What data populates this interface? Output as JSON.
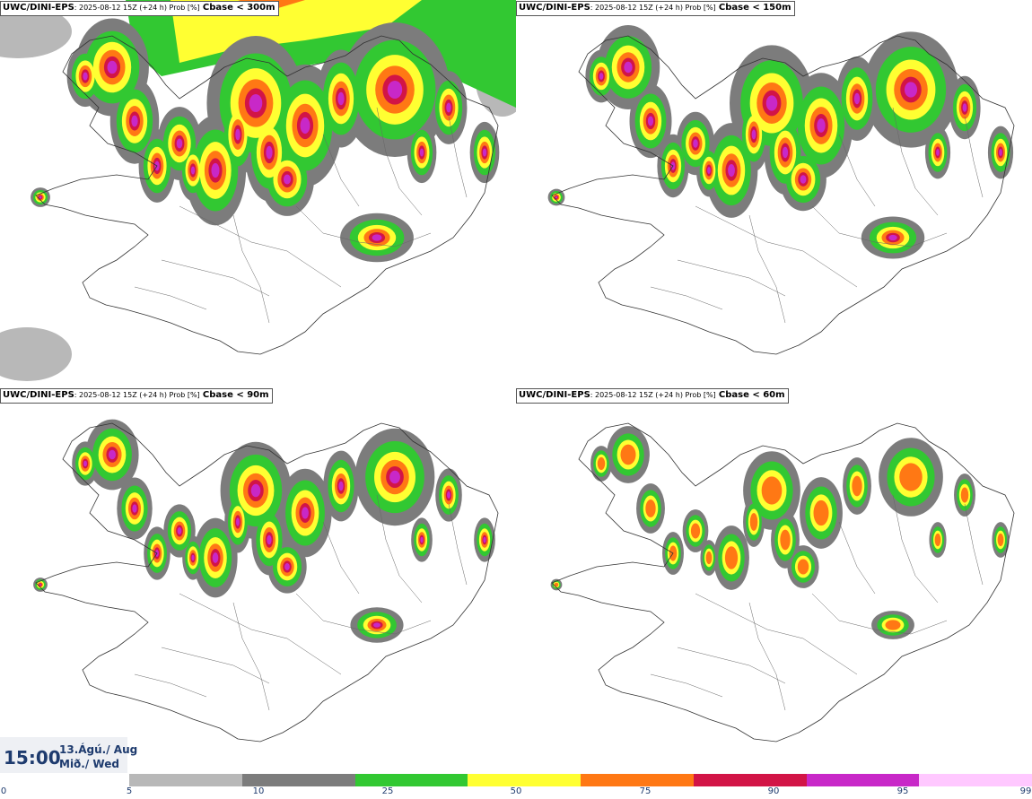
{
  "panels": [
    {
      "model": "UWC/DINI-EPS",
      "meta": ": 2025-08-12 15Z (+24 h) Prob [%]",
      "variable": "Cbase < 300m",
      "level": 4
    },
    {
      "model": "UWC/DINI-EPS",
      "meta": ": 2025-08-12 15Z (+24 h) Prob [%]",
      "variable": "Cbase < 150m",
      "level": 3
    },
    {
      "model": "UWC/DINI-EPS",
      "meta": ": 2025-08-12 15Z (+24 h) Prob [%]",
      "variable": "Cbase < 90m",
      "level": 2
    },
    {
      "model": "UWC/DINI-EPS",
      "meta": ": 2025-08-12 15Z (+24 h) Prob [%]",
      "variable": "Cbase < 60m",
      "level": 1
    }
  ],
  "valid_time": {
    "time": "15:00",
    "date_line1": "13.Ágú./ Aug",
    "date_line2": "Mið./ Wed"
  },
  "colorbar": {
    "labels": [
      "0",
      "5",
      "10",
      "25",
      "50",
      "75",
      "90",
      "95",
      "99"
    ],
    "colors": [
      "#ffffff",
      "#b8b8b8",
      "#7c7c7c",
      "#32c832",
      "#ffff32",
      "#ff7814",
      "#d21446",
      "#c828c8",
      "#ffc8ff"
    ]
  }
}
